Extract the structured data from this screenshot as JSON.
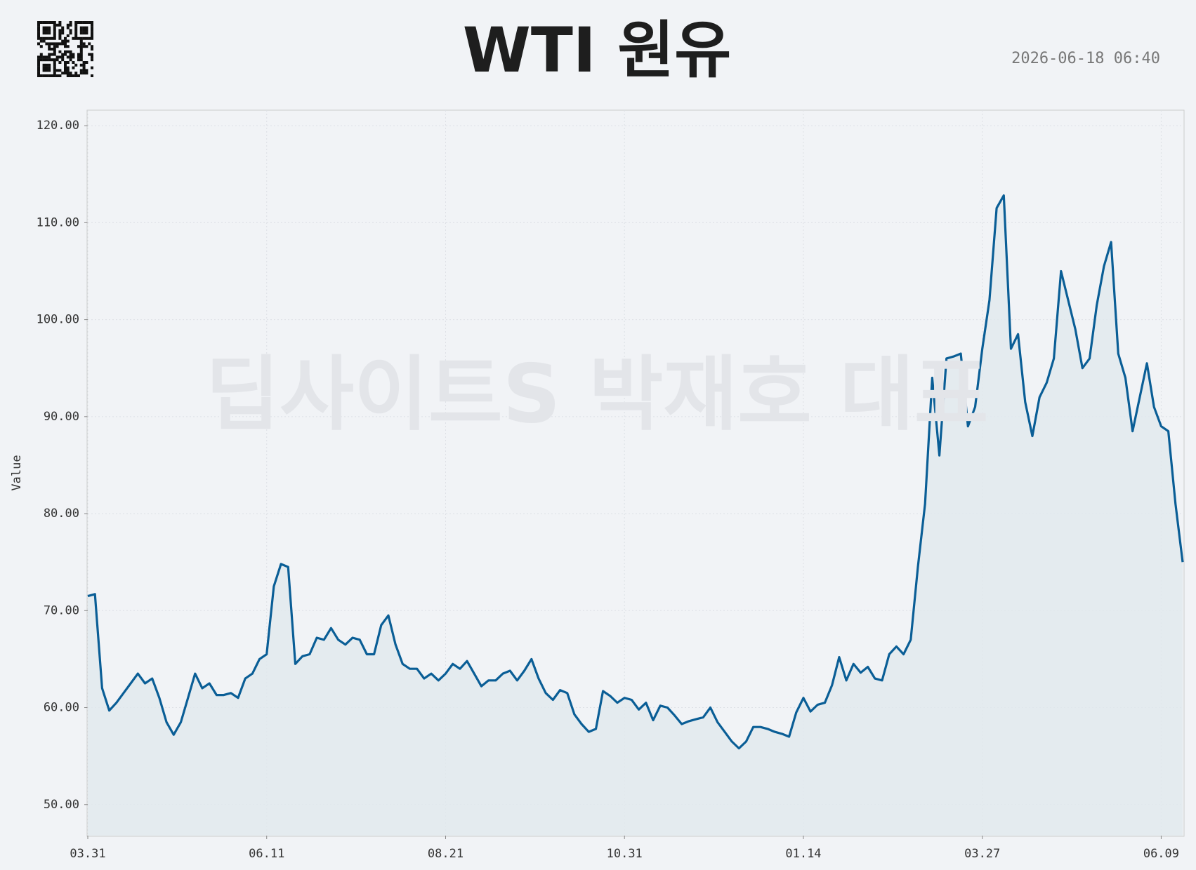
{
  "chart_data": {
    "type": "line",
    "title": "WTI 원유",
    "timestamp": "2026-06-18 06:40",
    "watermark": "딥사이트S 박재호 대표",
    "y_label": "Value",
    "color": "#0a5e96",
    "fill_color": "#e1e8ee",
    "grid": true,
    "ylim": [
      46.8,
      121.6
    ],
    "yticks": [
      {
        "value": 50,
        "label": "50.00"
      },
      {
        "value": 60,
        "label": "60.00"
      },
      {
        "value": 70,
        "label": "70.00"
      },
      {
        "value": 80,
        "label": "80.00"
      },
      {
        "value": 90,
        "label": "90.00"
      },
      {
        "value": 100,
        "label": "100.00"
      },
      {
        "value": 110,
        "label": "110.00"
      },
      {
        "value": 120,
        "label": "120.00"
      }
    ],
    "categories": [
      "03.31",
      null,
      null,
      null,
      null,
      null,
      null,
      null,
      null,
      null,
      null,
      null,
      null,
      null,
      null,
      null,
      null,
      null,
      null,
      null,
      null,
      null,
      null,
      null,
      null,
      "06.11",
      null,
      null,
      null,
      null,
      null,
      null,
      null,
      null,
      null,
      null,
      null,
      null,
      null,
      null,
      null,
      null,
      null,
      null,
      null,
      null,
      null,
      null,
      null,
      null,
      "08.21",
      null,
      null,
      null,
      null,
      null,
      null,
      null,
      null,
      null,
      null,
      null,
      null,
      null,
      null,
      null,
      null,
      null,
      null,
      null,
      null,
      null,
      null,
      null,
      null,
      "10.31",
      null,
      null,
      null,
      null,
      null,
      null,
      null,
      null,
      null,
      null,
      null,
      null,
      null,
      null,
      null,
      null,
      null,
      null,
      null,
      null,
      null,
      null,
      null,
      null,
      "01.14",
      null,
      null,
      null,
      null,
      null,
      null,
      null,
      null,
      null,
      null,
      null,
      null,
      null,
      null,
      null,
      null,
      null,
      null,
      null,
      null,
      null,
      null,
      null,
      null,
      "03.27",
      null,
      null,
      null,
      null,
      null,
      null,
      null,
      null,
      null,
      null,
      null,
      null,
      null,
      null,
      null,
      null,
      null,
      null,
      null,
      null,
      null,
      null,
      null,
      null,
      "06.09",
      null,
      null,
      null
    ],
    "values": [
      71.5,
      71.7,
      62,
      59.7,
      60.5,
      61.5,
      62.5,
      63.5,
      62.5,
      63,
      61,
      58.5,
      57.2,
      58.5,
      61,
      63.5,
      62,
      62.5,
      61.3,
      61.3,
      61.5,
      61,
      63,
      63.5,
      65,
      65.5,
      72.5,
      74.8,
      74.5,
      64.5,
      65.3,
      65.5,
      67.2,
      67,
      68.2,
      67,
      66.5,
      67.2,
      67,
      65.5,
      65.5,
      68.5,
      69.5,
      66.5,
      64.5,
      64,
      64,
      63,
      63.5,
      62.8,
      63.5,
      64.5,
      64,
      64.8,
      63.5,
      62.2,
      62.8,
      62.8,
      63.5,
      63.8,
      62.8,
      63.8,
      65,
      63,
      61.5,
      60.8,
      61.8,
      61.5,
      59.3,
      58.3,
      57.5,
      57.8,
      61.7,
      61.2,
      60.5,
      61,
      60.8,
      59.8,
      60.5,
      58.7,
      60.2,
      60,
      59.2,
      58.3,
      58.6,
      58.8,
      59,
      60,
      58.5,
      57.5,
      56.5,
      55.8,
      56.5,
      58,
      58,
      57.8,
      57.5,
      57.3,
      57,
      59.5,
      61,
      59.6,
      60.3,
      60.5,
      62.3,
      65.2,
      62.8,
      64.5,
      63.6,
      64.2,
      63,
      62.8,
      65.5,
      66.3,
      65.5,
      67,
      74.5,
      81,
      94,
      86,
      96,
      96.2,
      96.5,
      89,
      91,
      97,
      102,
      111.5,
      112.8,
      97,
      98.5,
      91.5,
      88,
      92,
      93.5,
      96,
      105,
      102,
      99,
      95,
      96,
      101.5,
      105.5,
      108,
      96.5,
      94,
      88.5,
      92,
      95.5,
      91,
      89,
      88.5,
      81,
      75
    ]
  }
}
